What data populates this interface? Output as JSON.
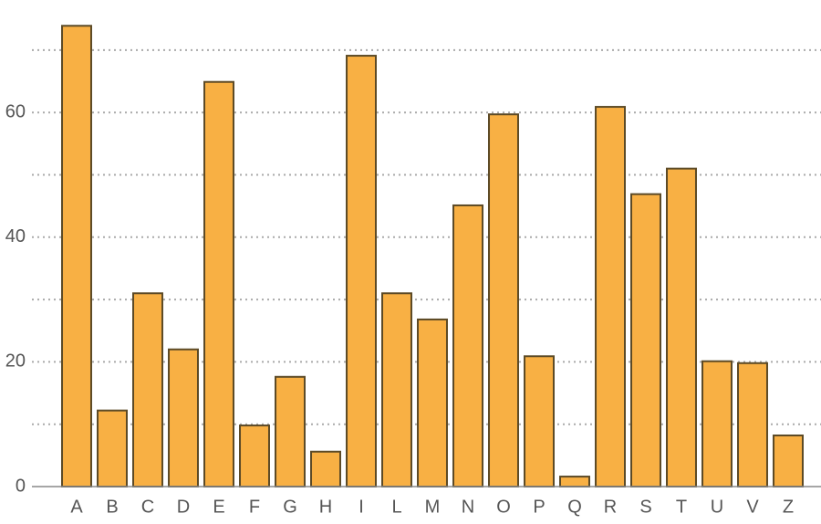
{
  "chart_data": {
    "type": "bar",
    "categories": [
      "A",
      "B",
      "C",
      "D",
      "E",
      "F",
      "G",
      "H",
      "I",
      "L",
      "M",
      "N",
      "O",
      "P",
      "Q",
      "R",
      "S",
      "T",
      "U",
      "V",
      "Z"
    ],
    "values": [
      73.9,
      12.2,
      31.0,
      22.0,
      64.9,
      9.8,
      17.6,
      5.6,
      69.1,
      31.0,
      26.8,
      45.1,
      59.7,
      20.9,
      1.6,
      60.9,
      46.9,
      51.0,
      20.1,
      19.8,
      8.2
    ],
    "color": "#f8b044",
    "edge_color": "#5c4a26",
    "ylim": [
      0,
      75
    ],
    "yticks": [
      0,
      20,
      40,
      60
    ],
    "minor_yticks": [
      10,
      30,
      50,
      70
    ],
    "grid": true
  }
}
